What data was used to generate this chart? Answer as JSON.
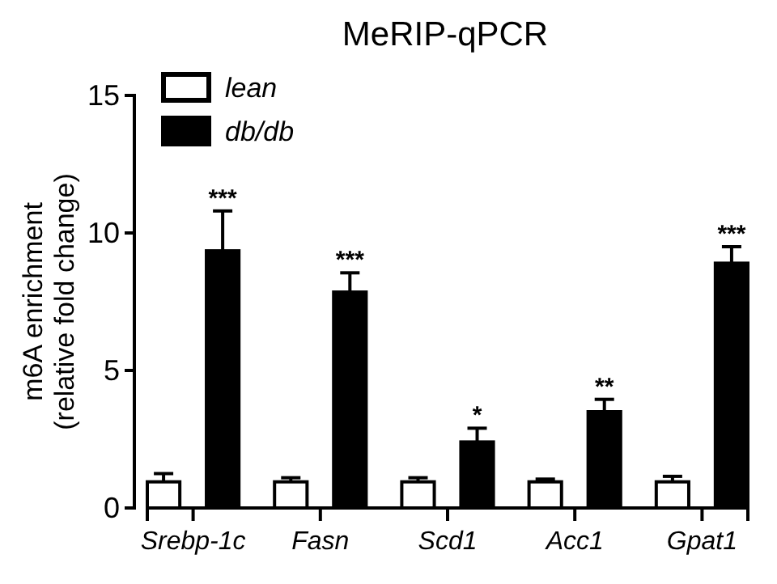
{
  "chart_data": {
    "type": "bar",
    "title": "MeRIP-qPCR",
    "ylabel": "m6A enrichment\n(relative fold change)",
    "categories": [
      "Srebp-1c",
      "Fasn",
      "Scd1",
      "Acc1",
      "Gpat1"
    ],
    "series": [
      {
        "name": "lean",
        "color": "#ffffff",
        "values": [
          0.95,
          0.95,
          0.95,
          0.95,
          0.95
        ],
        "errors": [
          [
            0.95,
            1.25
          ],
          [
            0.95,
            1.1
          ],
          [
            0.95,
            1.1
          ],
          [
            0.95,
            1.05
          ],
          [
            0.95,
            1.15
          ]
        ]
      },
      {
        "name": "db/db",
        "color": "#000000",
        "values": [
          9.35,
          7.85,
          2.4,
          3.5,
          8.9
        ],
        "errors": [
          [
            9.35,
            10.8
          ],
          [
            7.85,
            8.55
          ],
          [
            2.4,
            2.9
          ],
          [
            3.5,
            3.95
          ],
          [
            8.9,
            9.5
          ]
        ]
      }
    ],
    "ylim": [
      0,
      15
    ],
    "yticks": [
      0,
      5,
      10,
      15
    ],
    "grid": false,
    "legend": "top left",
    "annotations": [
      "***",
      "***",
      "*",
      "**",
      "***"
    ]
  }
}
